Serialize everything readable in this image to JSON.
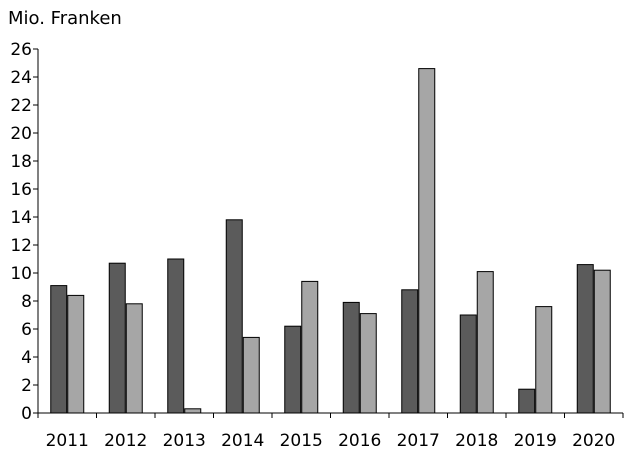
{
  "chart_data": {
    "type": "bar",
    "ylabel": "Mio. Franken",
    "categories": [
      "2011",
      "2012",
      "2013",
      "2014",
      "2015",
      "2016",
      "2017",
      "2018",
      "2019",
      "2020"
    ],
    "series": [
      {
        "values": [
          9.1,
          10.7,
          11.0,
          13.8,
          6.2,
          7.9,
          8.8,
          7.0,
          1.7,
          10.6
        ],
        "color": "#5b5b5b"
      },
      {
        "values": [
          8.4,
          7.8,
          0.3,
          5.4,
          9.4,
          7.1,
          24.6,
          10.1,
          7.6,
          10.2
        ],
        "color": "#a6a6a6"
      }
    ],
    "ylim": [
      0,
      26
    ],
    "yticks": [
      0,
      2,
      4,
      6,
      8,
      10,
      12,
      14,
      16,
      18,
      20,
      22,
      24,
      26
    ],
    "grid": false,
    "legend": false
  }
}
